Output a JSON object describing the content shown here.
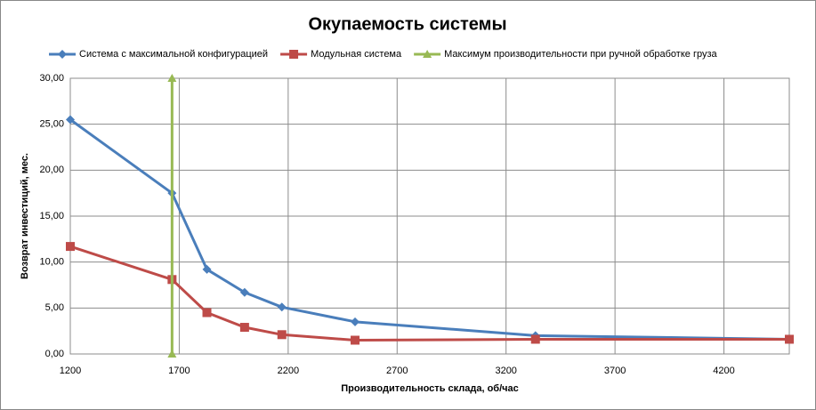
{
  "chart_data": {
    "type": "line",
    "title": "Окупаемость системы",
    "x_label": "Производительность  склада,  об/час",
    "y_label": "Возврат инвестиций,  мес.",
    "series": [
      {
        "name": "Система с максимальной конфигурацией",
        "color": "#4a7ebb",
        "marker": "diamond",
        "x": [
          1200,
          1667,
          1827,
          2000,
          2171,
          2507,
          3335,
          4500
        ],
        "values": [
          25.5,
          17.5,
          9.2,
          6.7,
          5.1,
          3.5,
          2.0,
          1.6
        ]
      },
      {
        "name": "Модульная система",
        "color": "#be4b48",
        "marker": "square",
        "x": [
          1200,
          1667,
          1827,
          2000,
          2171,
          2507,
          3335,
          4500
        ],
        "values": [
          11.7,
          8.1,
          4.5,
          2.9,
          2.1,
          1.5,
          1.6,
          1.6
        ]
      },
      {
        "name": "Максимум производительности  при ручной обработке груза",
        "color": "#98b954",
        "marker": "triangle",
        "x": [
          1667,
          1667
        ],
        "values": [
          0,
          30
        ]
      }
    ],
    "xlim": [
      1200,
      4500
    ],
    "xticks": [
      1200,
      1700,
      2200,
      2700,
      3200,
      3700,
      4200
    ],
    "ylim": [
      0,
      30
    ],
    "yticks": [
      {
        "value": 0,
        "label": "0,00"
      },
      {
        "value": 5,
        "label": "5,00"
      },
      {
        "value": 10,
        "label": "10,00"
      },
      {
        "value": 15,
        "label": "15,00"
      },
      {
        "value": 20,
        "label": "20,00"
      },
      {
        "value": 25,
        "label": "25,00"
      },
      {
        "value": 30,
        "label": "30,00"
      }
    ],
    "grid": true,
    "legend": "top"
  }
}
